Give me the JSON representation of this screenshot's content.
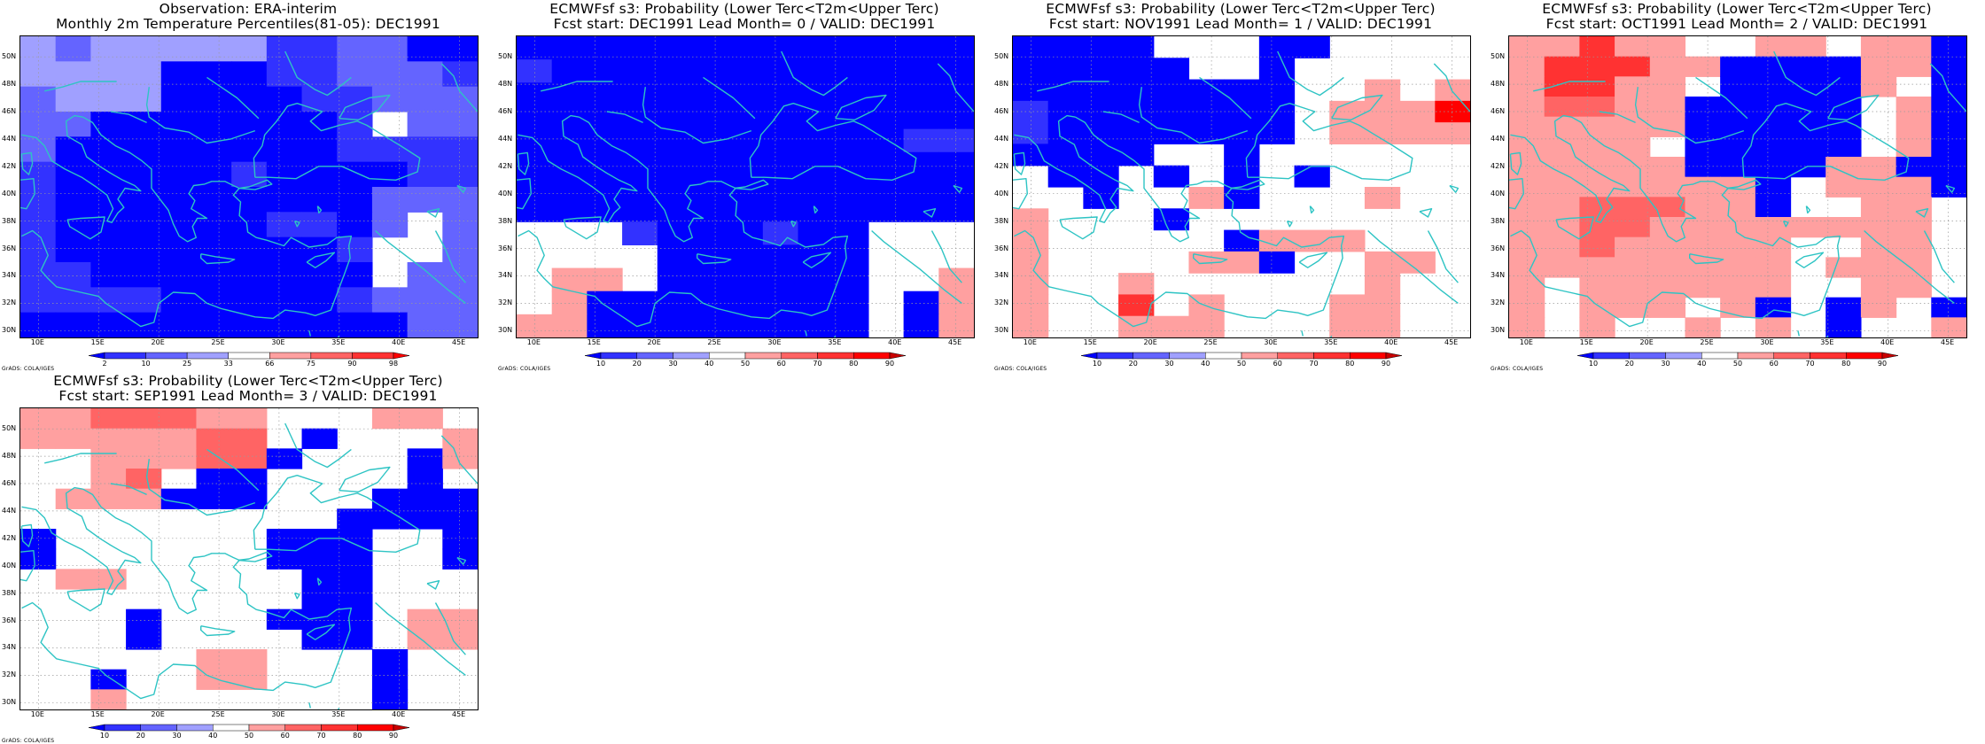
{
  "lat_labels": [
    "50N",
    "48N",
    "46N",
    "44N",
    "42N",
    "40N",
    "38N",
    "36N",
    "34N",
    "32N",
    "30N"
  ],
  "lon_labels": [
    "10E",
    "15E",
    "20E",
    "25E",
    "30E",
    "35E",
    "40E",
    "45E"
  ],
  "grads_credit": "GrADS: COLA/IGES",
  "colors": {
    "coast": "#2ec4c4",
    "grid": "#9a9a9a",
    "frame": "#000000"
  },
  "panels": [
    {
      "title_line1": "Observation: ERA-interim",
      "title_line2": "Monthly 2m Temperature Percentiles(81-05): DEC1991",
      "legend": {
        "ticks": [
          "2",
          "10",
          "25",
          "33",
          "66",
          "75",
          "90",
          "98"
        ],
        "colors": [
          "#0000ff",
          "#3232ff",
          "#6464ff",
          "#a0a0ff",
          "#ffffff",
          "#ffa0a0",
          "#ff6464",
          "#ff3232",
          "#ff0000"
        ]
      },
      "grid": [
        "4344444223311",
        "4444111223332",
        "3444111122333",
        "3311111112033",
        "3111111112222",
        "2111112111122",
        "2111111111333",
        "2111111221303",
        "2111111112003",
        "2211111111033",
        "2222111112333",
        "1111111111133"
      ],
      "code_colors": [
        "#ffffff",
        "#0000ff",
        "#3232ff",
        "#6464ff",
        "#a0a0ff"
      ]
    },
    {
      "title_line1": "ECMWFsf s3: Probability (Lower Terc<T2m<Upper Terc)",
      "title_line2": "Fcst start: DEC1991   Lead Month= 0 / VALID: DEC1991",
      "legend": {
        "ticks": [
          "10",
          "20",
          "30",
          "40",
          "50",
          "60",
          "70",
          "80",
          "90"
        ],
        "colors": [
          "#0000ff",
          "#3232ff",
          "#6464ff",
          "#a0a0ff",
          "#ffffff",
          "#ffa0a0",
          "#ff6464",
          "#ff3232",
          "#ff0000",
          "#c80000"
        ]
      },
      "grid": [
        "1111111111111",
        "2111111111111",
        "1111111111111",
        "1111111111111",
        "1111111111122",
        "1111111111111",
        "1111111111111",
        "1111111111111",
        "0002111211000",
        "0000111111000",
        "0550111111005",
        "0511111111015",
        "5511111111015"
      ],
      "code_colors": [
        "#ffffff",
        "#0000ff",
        "#3232ff",
        "#6464ff",
        "#a0a0ff",
        "#ffa0a0",
        "#ff6464",
        "#ff3232",
        "#ff0000"
      ]
    },
    {
      "title_line1": "ECMWFsf s3: Probability (Lower Terc<T2m<Upper Terc)",
      "title_line2": "Fcst start: NOV1991   Lead Month= 1 / VALID: DEC1991",
      "legend": {
        "ticks": [
          "10",
          "20",
          "30",
          "40",
          "50",
          "60",
          "70",
          "80",
          "90"
        ],
        "colors": [
          "#0000ff",
          "#3232ff",
          "#6464ff",
          "#a0a0ff",
          "#ffffff",
          "#ffa0a0",
          "#ff6464",
          "#ff3232",
          "#ff0000",
          "#c80000"
        ]
      },
      "grid": [
        "1111000110000",
        "1111100100000",
        "1111111100505",
        "2111111105558",
        "2111111105555",
        "1111001000000",
        "0110101010000",
        "0010051000500",
        "5000100000000",
        "5000001555000",
        "5000055100550",
        "5005000000500",
        "5007050005500",
        "5005550005500"
      ],
      "code_colors": [
        "#ffffff",
        "#0000ff",
        "#3232ff",
        "#6464ff",
        "#a0a0ff",
        "#ffa0a0",
        "#ff6464",
        "#ff3232",
        "#ff0000"
      ]
    },
    {
      "title_line1": "ECMWFsf s3: Probability (Lower Terc<T2m<Upper Terc)",
      "title_line2": "Fcst start: OCT1991   Lead Month= 2 / VALID: DEC1991",
      "legend": {
        "ticks": [
          "10",
          "20",
          "30",
          "40",
          "50",
          "60",
          "70",
          "80",
          "90"
        ],
        "colors": [
          "#0000ff",
          "#3232ff",
          "#6464ff",
          "#a0a0ff",
          "#ffffff",
          "#ffa0a0",
          "#ff6464",
          "#ff3232",
          "#ff0000",
          "#c80000"
        ]
      },
      "grid": [
        "5575500550551",
        "5777551111551",
        "5775501111501",
        "5665511111051",
        "5555511111051",
        "5555011111051",
        "5555511115511",
        "5555555105551",
        "5566655100550",
        "5566555555550",
        "5565555500550",
        "5555555505550",
        "5055555500550",
        "5055505101501",
        "5050050501005"
      ],
      "code_colors": [
        "#ffffff",
        "#0000ff",
        "#3232ff",
        "#6464ff",
        "#a0a0ff",
        "#ffa0a0",
        "#ff6464",
        "#ff3232",
        "#ff0000"
      ]
    },
    {
      "title_line1": "ECMWFsf s3: Probability (Lower Terc<T2m<Upper Terc)",
      "title_line2": "Fcst start: SEP1991   Lead Month= 3 / VALID: DEC1991",
      "legend": {
        "ticks": [
          "10",
          "20",
          "30",
          "40",
          "50",
          "60",
          "70",
          "80",
          "90"
        ],
        "colors": [
          "#0000ff",
          "#3232ff",
          "#6464ff",
          "#a0a0ff",
          "#ffffff",
          "#ffa0a0",
          "#ff6464",
          "#ff3232",
          "#ff0000",
          "#c80000"
        ]
      },
      "grid": [
        "5566655000550",
        "5555566010005",
        "0055566100015",
        "0056011000010",
        "0555111000111",
        "0000000001111",
        "1000000111001",
        "1000000111001",
        "0550000011000",
        "0000000011000",
        "0001000111055",
        "0001000011055",
        "0000055000100",
        "0010055000100",
        "0050000000100"
      ],
      "code_colors": [
        "#ffffff",
        "#0000ff",
        "#3232ff",
        "#6464ff",
        "#a0a0ff",
        "#ffa0a0",
        "#ff6464",
        "#ff3232",
        "#ff0000"
      ]
    }
  ]
}
